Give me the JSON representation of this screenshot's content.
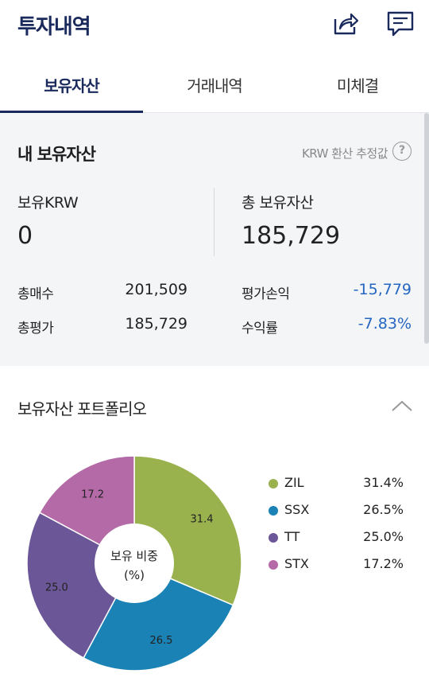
{
  "header": {
    "title": "투자내역",
    "share_icon": "share-icon",
    "memo_icon": "message-icon"
  },
  "tabs": [
    {
      "label": "보유자산",
      "active": true
    },
    {
      "label": "거래내역",
      "active": false
    },
    {
      "label": "미체결",
      "active": false
    }
  ],
  "summary": {
    "title": "내 보유자산",
    "note": "KRW 환산 추정값",
    "help": "?",
    "krw_label": "보유KRW",
    "krw_value": "0",
    "total_label": "총 보유자산",
    "total_value": "185,729",
    "buy_label": "총매수",
    "buy_value": "201,509",
    "eval_label": "총평가",
    "eval_value": "185,729",
    "pl_label": "평가손익",
    "pl_value": "-15,779",
    "rate_label": "수익률",
    "rate_value": "-7.83%"
  },
  "portfolio": {
    "title": "보유자산 포트폴리오",
    "center_line1": "보유 비중",
    "center_line2": "(%)"
  },
  "chart_data": {
    "type": "pie",
    "categories": [
      "ZIL",
      "SSX",
      "TT",
      "STX"
    ],
    "values": [
      31.4,
      26.5,
      25.0,
      17.2
    ],
    "slice_labels": [
      "31.4",
      "26.5",
      "25.0",
      "17.2"
    ],
    "legend_pcts": [
      "31.4%",
      "26.5%",
      "25.0%",
      "17.2%"
    ],
    "colors": [
      "#9ab24e",
      "#1a82b4",
      "#6b5797",
      "#b56aa8"
    ],
    "legend_position": "right"
  }
}
